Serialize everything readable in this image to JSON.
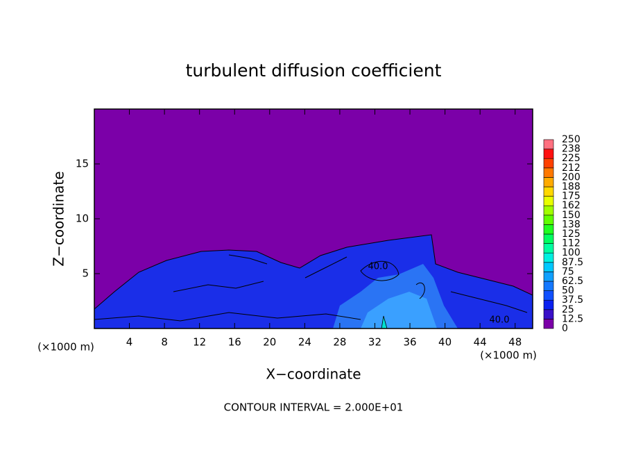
{
  "chart_data": {
    "type": "contour",
    "title": "turbulent diffusion coefficient",
    "x_label": "X−coordinate",
    "y_label": "Z−coordinate",
    "x_unit_left": "(×1000 m)",
    "x_unit_right": "(×1000 m)",
    "footer": "CONTOUR INTERVAL = 2.000E+01",
    "contour_labels": [
      "40.0",
      "40.0"
    ],
    "xlim": [
      0,
      50
    ],
    "xticks": [
      4,
      8,
      12,
      16,
      20,
      24,
      28,
      32,
      36,
      40,
      44,
      48
    ],
    "ylim": [
      0,
      20
    ],
    "yticks": [
      5,
      10,
      15
    ],
    "colorbar": {
      "levels": [
        0,
        12.5,
        25,
        37.5,
        50,
        62.5,
        75,
        87.5,
        100,
        {
          "value": 112.5,
          "label": "112"
        },
        125,
        {
          "value": 137.5,
          "label": "138"
        },
        150,
        {
          "value": 162.5,
          "label": "162"
        },
        175,
        {
          "value": 187.5,
          "label": "188"
        },
        200,
        {
          "value": 212.5,
          "label": "212"
        },
        225,
        {
          "value": 237.5,
          "label": "238"
        },
        250
      ],
      "colors": [
        "#7b00a8",
        "#3a10c8",
        "#0a20f0",
        "#1050ff",
        "#1478ff",
        "#10a0ff",
        "#00c8ff",
        "#00f0e0",
        "#00ffa0",
        "#00ff60",
        "#20ff20",
        "#60ff00",
        "#a0ff00",
        "#e8ff00",
        "#ffd800",
        "#ffaa00",
        "#ff7800",
        "#ff4000",
        "#ff1010",
        "#ff7080"
      ]
    }
  }
}
